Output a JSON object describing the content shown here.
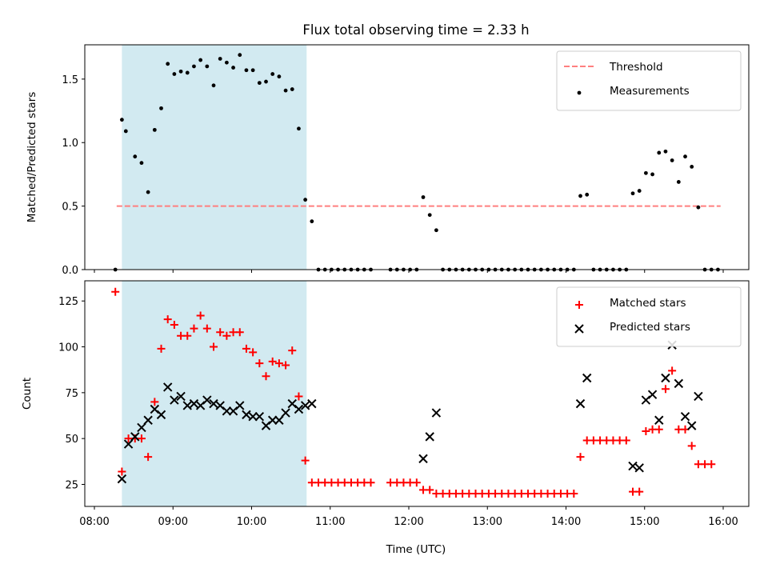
{
  "chart_data": [
    {
      "type": "scatter",
      "title": "Flux total observing time = 2.33 h",
      "xlabel": "",
      "ylabel": "Matched/Predicted stars",
      "xlim": [
        "08:00",
        "16:00"
      ],
      "ylim": [
        0,
        1.77
      ],
      "yticks": [
        0.0,
        0.5,
        1.0,
        1.5
      ],
      "ytick_labels": [
        "0.0",
        "0.5",
        "1.0",
        "1.5"
      ],
      "xticks": [
        "08:00",
        "09:00",
        "10:00",
        "11:00",
        "12:00",
        "13:00",
        "14:00",
        "15:00",
        "16:00"
      ],
      "legend_position": "top-right",
      "shaded_span": [
        "08:21",
        "10:42"
      ],
      "shade_color": "#add8e6",
      "threshold": {
        "name": "Threshold",
        "value": 0.5,
        "x_start": "08:17",
        "x_end": "15:58",
        "color": "#ff7f7f"
      },
      "series": [
        {
          "name": "Measurements",
          "marker": "dot",
          "color": "#000000",
          "points": [
            [
              "08:16",
              0.0
            ],
            [
              "08:21",
              1.18
            ],
            [
              "08:24",
              1.09
            ],
            [
              "08:31",
              0.89
            ],
            [
              "08:36",
              0.84
            ],
            [
              "08:41",
              0.61
            ],
            [
              "08:46",
              1.1
            ],
            [
              "08:51",
              1.27
            ],
            [
              "08:56",
              1.62
            ],
            [
              "09:01",
              1.54
            ],
            [
              "09:06",
              1.56
            ],
            [
              "09:11",
              1.55
            ],
            [
              "09:16",
              1.6
            ],
            [
              "09:21",
              1.65
            ],
            [
              "09:26",
              1.6
            ],
            [
              "09:31",
              1.45
            ],
            [
              "09:36",
              1.66
            ],
            [
              "09:41",
              1.63
            ],
            [
              "09:46",
              1.59
            ],
            [
              "09:51",
              1.69
            ],
            [
              "09:56",
              1.57
            ],
            [
              "10:01",
              1.57
            ],
            [
              "10:06",
              1.47
            ],
            [
              "10:11",
              1.48
            ],
            [
              "10:16",
              1.54
            ],
            [
              "10:21",
              1.52
            ],
            [
              "10:26",
              1.41
            ],
            [
              "10:31",
              1.42
            ],
            [
              "10:36",
              1.11
            ],
            [
              "10:41",
              0.55
            ],
            [
              "10:46",
              0.38
            ],
            [
              "10:51",
              0.0
            ],
            [
              "10:56",
              0.0
            ],
            [
              "11:01",
              0.0
            ],
            [
              "11:06",
              0.0
            ],
            [
              "11:11",
              0.0
            ],
            [
              "11:16",
              0.0
            ],
            [
              "11:21",
              0.0
            ],
            [
              "11:26",
              0.0
            ],
            [
              "11:31",
              0.0
            ],
            [
              "11:46",
              0.0
            ],
            [
              "11:51",
              0.0
            ],
            [
              "11:56",
              0.0
            ],
            [
              "12:01",
              0.0
            ],
            [
              "12:06",
              0.0
            ],
            [
              "12:11",
              0.57
            ],
            [
              "12:16",
              0.43
            ],
            [
              "12:21",
              0.31
            ],
            [
              "12:26",
              0.0
            ],
            [
              "12:31",
              0.0
            ],
            [
              "12:36",
              0.0
            ],
            [
              "12:41",
              0.0
            ],
            [
              "12:46",
              0.0
            ],
            [
              "12:51",
              0.0
            ],
            [
              "12:56",
              0.0
            ],
            [
              "13:01",
              0.0
            ],
            [
              "13:06",
              0.0
            ],
            [
              "13:11",
              0.0
            ],
            [
              "13:16",
              0.0
            ],
            [
              "13:21",
              0.0
            ],
            [
              "13:26",
              0.0
            ],
            [
              "13:31",
              0.0
            ],
            [
              "13:36",
              0.0
            ],
            [
              "13:41",
              0.0
            ],
            [
              "13:46",
              0.0
            ],
            [
              "13:51",
              0.0
            ],
            [
              "13:56",
              0.0
            ],
            [
              "14:01",
              0.0
            ],
            [
              "14:06",
              0.0
            ],
            [
              "14:11",
              0.58
            ],
            [
              "14:16",
              0.59
            ],
            [
              "14:21",
              0.0
            ],
            [
              "14:26",
              0.0
            ],
            [
              "14:31",
              0.0
            ],
            [
              "14:36",
              0.0
            ],
            [
              "14:41",
              0.0
            ],
            [
              "14:46",
              0.0
            ],
            [
              "14:51",
              0.6
            ],
            [
              "14:56",
              0.62
            ],
            [
              "15:01",
              0.76
            ],
            [
              "15:06",
              0.75
            ],
            [
              "15:11",
              0.92
            ],
            [
              "15:16",
              0.93
            ],
            [
              "15:21",
              0.86
            ],
            [
              "15:26",
              0.69
            ],
            [
              "15:31",
              0.89
            ],
            [
              "15:36",
              0.81
            ],
            [
              "15:41",
              0.49
            ],
            [
              "15:46",
              0.0
            ],
            [
              "15:51",
              0.0
            ],
            [
              "15:56",
              0.0
            ]
          ]
        }
      ]
    },
    {
      "type": "scatter",
      "title": "",
      "xlabel": "Time (UTC)",
      "ylabel": "Count",
      "xlim": [
        "08:00",
        "16:00"
      ],
      "ylim": [
        13,
        136
      ],
      "yticks": [
        25,
        50,
        75,
        100,
        125
      ],
      "ytick_labels": [
        "25",
        "50",
        "75",
        "100",
        "125"
      ],
      "xticks": [
        "08:00",
        "09:00",
        "10:00",
        "11:00",
        "12:00",
        "13:00",
        "14:00",
        "15:00",
        "16:00"
      ],
      "xtick_labels": [
        "08:00",
        "09:00",
        "10:00",
        "11:00",
        "12:00",
        "13:00",
        "14:00",
        "15:00",
        "16:00"
      ],
      "legend_position": "top-right",
      "shaded_span": [
        "08:21",
        "10:42"
      ],
      "shade_color": "#add8e6",
      "series": [
        {
          "name": "Matched stars",
          "marker": "plus",
          "color": "#ff0000",
          "points": [
            [
              "08:16",
              130
            ],
            [
              "08:21",
              32
            ],
            [
              "08:26",
              50
            ],
            [
              "08:31",
              50
            ],
            [
              "08:36",
              50
            ],
            [
              "08:41",
              40
            ],
            [
              "08:46",
              70
            ],
            [
              "08:51",
              99
            ],
            [
              "08:56",
              115
            ],
            [
              "09:01",
              112
            ],
            [
              "09:06",
              106
            ],
            [
              "09:11",
              106
            ],
            [
              "09:16",
              110
            ],
            [
              "09:21",
              117
            ],
            [
              "09:26",
              110
            ],
            [
              "09:31",
              100
            ],
            [
              "09:36",
              108
            ],
            [
              "09:41",
              106
            ],
            [
              "09:46",
              108
            ],
            [
              "09:51",
              108
            ],
            [
              "09:56",
              99
            ],
            [
              "10:01",
              97
            ],
            [
              "10:06",
              91
            ],
            [
              "10:11",
              84
            ],
            [
              "10:16",
              92
            ],
            [
              "10:21",
              91
            ],
            [
              "10:26",
              90
            ],
            [
              "10:31",
              98
            ],
            [
              "10:36",
              73
            ],
            [
              "10:41",
              38
            ],
            [
              "10:46",
              26
            ],
            [
              "10:51",
              26
            ],
            [
              "10:56",
              26
            ],
            [
              "11:01",
              26
            ],
            [
              "11:06",
              26
            ],
            [
              "11:11",
              26
            ],
            [
              "11:16",
              26
            ],
            [
              "11:21",
              26
            ],
            [
              "11:26",
              26
            ],
            [
              "11:31",
              26
            ],
            [
              "11:46",
              26
            ],
            [
              "11:51",
              26
            ],
            [
              "11:56",
              26
            ],
            [
              "12:01",
              26
            ],
            [
              "12:06",
              26
            ],
            [
              "12:11",
              22
            ],
            [
              "12:16",
              22
            ],
            [
              "12:21",
              20
            ],
            [
              "12:26",
              20
            ],
            [
              "12:31",
              20
            ],
            [
              "12:36",
              20
            ],
            [
              "12:41",
              20
            ],
            [
              "12:46",
              20
            ],
            [
              "12:51",
              20
            ],
            [
              "12:56",
              20
            ],
            [
              "13:01",
              20
            ],
            [
              "13:06",
              20
            ],
            [
              "13:11",
              20
            ],
            [
              "13:16",
              20
            ],
            [
              "13:21",
              20
            ],
            [
              "13:26",
              20
            ],
            [
              "13:31",
              20
            ],
            [
              "13:36",
              20
            ],
            [
              "13:41",
              20
            ],
            [
              "13:46",
              20
            ],
            [
              "13:51",
              20
            ],
            [
              "13:56",
              20
            ],
            [
              "14:01",
              20
            ],
            [
              "14:06",
              20
            ],
            [
              "14:11",
              40
            ],
            [
              "14:16",
              49
            ],
            [
              "14:21",
              49
            ],
            [
              "14:26",
              49
            ],
            [
              "14:31",
              49
            ],
            [
              "14:36",
              49
            ],
            [
              "14:41",
              49
            ],
            [
              "14:46",
              49
            ],
            [
              "14:51",
              21
            ],
            [
              "14:56",
              21
            ],
            [
              "15:01",
              54
            ],
            [
              "15:06",
              55
            ],
            [
              "15:11",
              55
            ],
            [
              "15:16",
              77
            ],
            [
              "15:21",
              87
            ],
            [
              "15:26",
              55
            ],
            [
              "15:31",
              55
            ],
            [
              "15:36",
              46
            ],
            [
              "15:41",
              36
            ],
            [
              "15:46",
              36
            ],
            [
              "15:51",
              36
            ]
          ]
        },
        {
          "name": "Predicted stars",
          "marker": "x",
          "color": "#000000",
          "points": [
            [
              "08:21",
              28
            ],
            [
              "08:26",
              47
            ],
            [
              "08:31",
              51
            ],
            [
              "08:36",
              56
            ],
            [
              "08:41",
              60
            ],
            [
              "08:46",
              66
            ],
            [
              "08:51",
              63
            ],
            [
              "08:56",
              78
            ],
            [
              "09:01",
              71
            ],
            [
              "09:06",
              73
            ],
            [
              "09:11",
              68
            ],
            [
              "09:16",
              69
            ],
            [
              "09:21",
              68
            ],
            [
              "09:26",
              71
            ],
            [
              "09:31",
              69
            ],
            [
              "09:36",
              68
            ],
            [
              "09:41",
              65
            ],
            [
              "09:46",
              65
            ],
            [
              "09:51",
              68
            ],
            [
              "09:56",
              63
            ],
            [
              "10:01",
              62
            ],
            [
              "10:06",
              62
            ],
            [
              "10:11",
              57
            ],
            [
              "10:16",
              60
            ],
            [
              "10:21",
              60
            ],
            [
              "10:26",
              64
            ],
            [
              "10:31",
              69
            ],
            [
              "10:36",
              66
            ],
            [
              "10:41",
              68
            ],
            [
              "10:46",
              69
            ],
            [
              "12:11",
              39
            ],
            [
              "12:16",
              51
            ],
            [
              "12:21",
              64
            ],
            [
              "14:11",
              69
            ],
            [
              "14:16",
              83
            ],
            [
              "14:51",
              35
            ],
            [
              "14:56",
              34
            ],
            [
              "15:01",
              71
            ],
            [
              "15:06",
              74
            ],
            [
              "15:11",
              60
            ],
            [
              "15:16",
              83
            ],
            [
              "15:21",
              101
            ],
            [
              "15:26",
              80
            ],
            [
              "15:31",
              62
            ],
            [
              "15:36",
              57
            ],
            [
              "15:41",
              73
            ]
          ]
        }
      ]
    }
  ]
}
